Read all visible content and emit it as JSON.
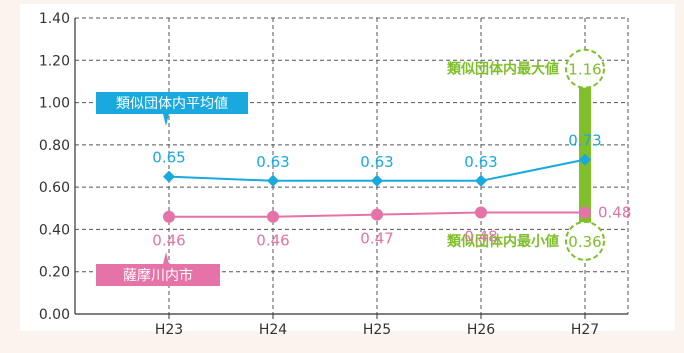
{
  "chart_data": {
    "type": "line",
    "title": "",
    "xlabel": "",
    "ylabel": "",
    "categories": [
      "H23",
      "H24",
      "H25",
      "H26",
      "H27"
    ],
    "ylim": [
      0,
      1.4
    ],
    "yticks": [
      "0.00",
      "0.20",
      "0.40",
      "0.60",
      "0.80",
      "1.00",
      "1.20",
      "1.40"
    ],
    "grid": true,
    "series": [
      {
        "name": "類似団体内平均値",
        "color": "#1aa9de",
        "marker": "diamond",
        "values": [
          0.65,
          0.63,
          0.63,
          0.63,
          0.73
        ],
        "labels": [
          "0.65",
          "0.63",
          "0.63",
          "0.63",
          "0.73"
        ]
      },
      {
        "name": "薩摩川内市",
        "color": "#e573a8",
        "marker": "circle",
        "values": [
          0.46,
          0.46,
          0.47,
          0.48,
          0.48
        ],
        "labels": [
          "0.46",
          "0.46",
          "0.47",
          "0.48",
          "0.48"
        ]
      }
    ],
    "range": {
      "category": "H27",
      "color": "#7fbf2a",
      "max": 1.16,
      "min": 0.36,
      "max_label": "1.16",
      "min_label": "0.36",
      "max_name": "類似団体内最大値",
      "min_name": "類似団体内最小値"
    }
  }
}
